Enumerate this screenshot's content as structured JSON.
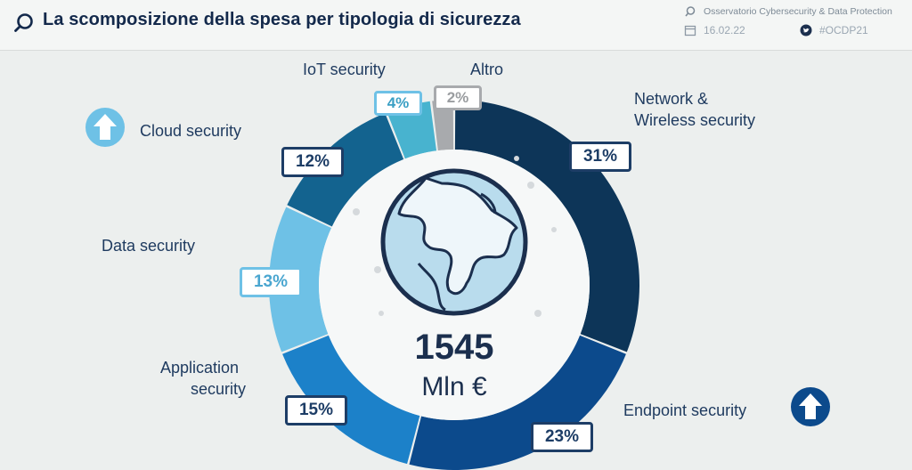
{
  "header": {
    "title": "La scomposizione della spesa per tipologia di sicurezza",
    "meta_org": "Osservatorio Cybersecurity & Data Protection",
    "meta_date": "16.02.22",
    "meta_hashtag": "#OCDP21"
  },
  "chart_data": {
    "type": "pie",
    "total_value": "1545",
    "total_unit": "Mln €",
    "categories": [
      "Network & Wireless security",
      "Endpoint security",
      "Application security",
      "Data security",
      "Cloud security",
      "IoT security",
      "Altro"
    ],
    "values": [
      31,
      23,
      15,
      13,
      12,
      4,
      2
    ],
    "value_labels": [
      "31%",
      "23%",
      "15%",
      "13%",
      "12%",
      "4%",
      "2%"
    ],
    "colors": [
      "#0d3558",
      "#0c4a8c",
      "#1c81c9",
      "#6ec1e6",
      "#13638f",
      "#48b3cf",
      "#a8aaad"
    ],
    "trend_up": [
      "Cloud security",
      "Endpoint security"
    ]
  },
  "labels": {
    "network_1": "Network &",
    "network_2": "Wireless security",
    "endpoint": "Endpoint security",
    "application_1": "Application",
    "application_2": "security",
    "data": "Data security",
    "cloud": "Cloud security",
    "iot": "IoT security",
    "altro": "Altro"
  },
  "icons": [
    "search-icon",
    "calendar-icon",
    "twitter-icon",
    "arrow-up-icon",
    "globe-icon"
  ]
}
